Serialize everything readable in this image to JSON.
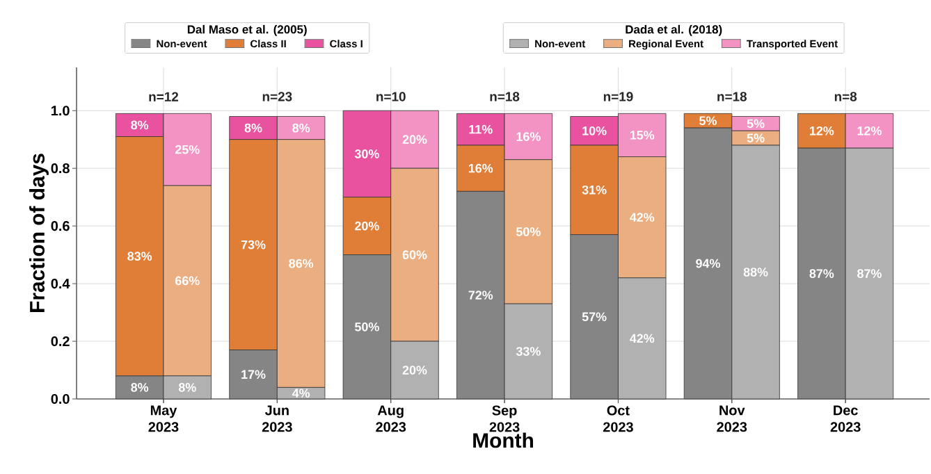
{
  "chart_data": [
    {
      "type": "bar",
      "stacked": true,
      "xlabel": "Month",
      "ylabel": "Fraction of days",
      "legend_title": "Dal Maso et al. (2005)",
      "legend": "top",
      "grid": true,
      "categories": [
        "May 2023",
        "Jun 2023",
        "Aug 2023",
        "Sep 2023",
        "Oct 2023",
        "Nov 2023",
        "Dec 2023"
      ],
      "ylim": [
        0,
        1.15
      ],
      "yticks": [
        {
          "value": 0,
          "label": "0.0"
        },
        {
          "value": 0.2,
          "label": "0.2"
        },
        {
          "value": 0.4,
          "label": "0.4"
        },
        {
          "value": 0.6,
          "label": "0.6"
        },
        {
          "value": 0.8,
          "label": "0.8"
        },
        {
          "value": 1.0,
          "label": "1.0"
        }
      ],
      "series": [
        {
          "name": "Non-event",
          "color": "#858585",
          "values": [
            0.08,
            0.17,
            0.5,
            0.72,
            0.57,
            0.94,
            0.87
          ],
          "value_labels": [
            "8%",
            "17%",
            "50%",
            "72%",
            "57%",
            "94%",
            "87%"
          ]
        },
        {
          "name": "Class II",
          "color": "#e07e38",
          "values": [
            0.83,
            0.73,
            0.2,
            0.16,
            0.31,
            0.05,
            0.12
          ],
          "value_labels": [
            "83%",
            "73%",
            "20%",
            "16%",
            "31%",
            "5%",
            "12%"
          ]
        },
        {
          "name": "Class I",
          "color": "#e8529f",
          "values": [
            0.08,
            0.08,
            0.3,
            0.11,
            0.1,
            0,
            0
          ],
          "value_labels": [
            "8%",
            "8%",
            "30%",
            "11%",
            "10%",
            null,
            null
          ]
        }
      ],
      "annotations": [
        "n=12",
        "n=23",
        "n=10",
        "n=18",
        "n=19",
        "n=18",
        "n=8"
      ]
    },
    {
      "type": "bar",
      "stacked": true,
      "legend_title": "Dada et al. (2018)",
      "legend": "top",
      "tick_labels": false,
      "categories": [
        null,
        null,
        null,
        null,
        null,
        null,
        null
      ],
      "ylim": [
        0,
        1.15
      ],
      "series": [
        {
          "name": "Non-event",
          "color": "#b1b1b1",
          "values": [
            0.08,
            0.04,
            0.2,
            0.33,
            0.42,
            0.88,
            0.87
          ],
          "value_labels": [
            "8%",
            "4%",
            "20%",
            "33%",
            "42%",
            "88%",
            "87%"
          ]
        },
        {
          "name": "Regional Event",
          "color": "#eaae80",
          "values": [
            0.66,
            0.86,
            0.6,
            0.5,
            0.42,
            0.05,
            0
          ],
          "value_labels": [
            "66%",
            "86%",
            "60%",
            "50%",
            "42%",
            "5%",
            null
          ]
        },
        {
          "name": "Transported Event",
          "color": "#f293c4",
          "values": [
            0.25,
            0.08,
            0.2,
            0.16,
            0.15,
            0.05,
            0.12
          ],
          "value_labels": [
            "25%",
            "8%",
            "20%",
            "16%",
            "15%",
            "5%",
            "12%"
          ]
        }
      ]
    }
  ]
}
